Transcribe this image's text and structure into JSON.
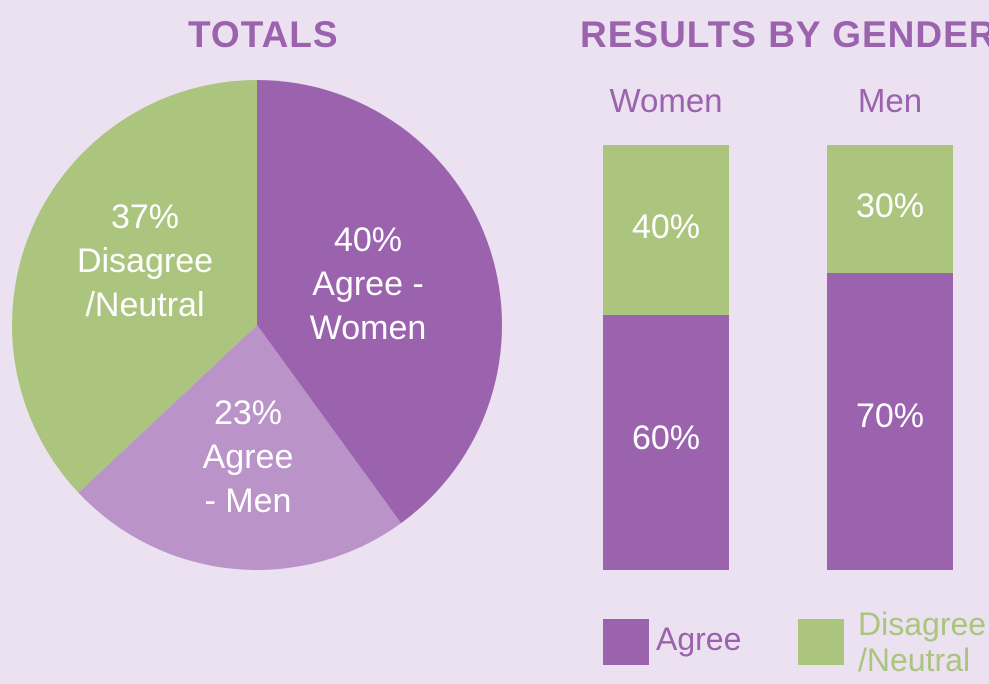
{
  "colors": {
    "background": "#ebe1f0",
    "title": "#9b62ad",
    "agree_women": "#9b62ad",
    "agree_men": "#ba93c9",
    "disagree": "#abc47e",
    "label": "#ffffff"
  },
  "chart_data": [
    {
      "type": "pie",
      "title": "TOTALS",
      "slices": [
        {
          "value": 40,
          "label_pct": "40%",
          "label_lines": [
            "Agree -",
            "Women"
          ],
          "color": "#9b62ad"
        },
        {
          "value": 23,
          "label_pct": "23%",
          "label_lines": [
            "Agree",
            "- Men"
          ],
          "color": "#ba93c9"
        },
        {
          "value": 37,
          "label_pct": "37%",
          "label_lines": [
            "Disagree",
            "/Neutral"
          ],
          "color": "#abc47e"
        }
      ]
    },
    {
      "type": "bar",
      "stacked": true,
      "title": "RESULTS BY GENDER",
      "categories": [
        "Women",
        "Men"
      ],
      "series": [
        {
          "name": "Agree",
          "values": [
            60,
            70
          ],
          "labels": [
            "60%",
            "70%"
          ],
          "color": "#9b62ad"
        },
        {
          "name": "Disagree /Neutral",
          "values": [
            40,
            30
          ],
          "labels": [
            "40%",
            "30%"
          ],
          "color": "#abc47e"
        }
      ],
      "ylim": [
        0,
        100
      ],
      "legend": {
        "position": "bottom",
        "items": [
          {
            "lines": [
              "Agree"
            ],
            "color": "#9b62ad"
          },
          {
            "lines": [
              "Disagree",
              "/Neutral"
            ],
            "color": "#abc47e"
          }
        ]
      }
    }
  ]
}
